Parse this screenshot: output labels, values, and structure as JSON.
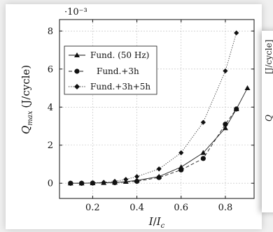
{
  "chart_data": {
    "type": "line",
    "exponent_label": "·10⁻³",
    "xlabel_main": "I",
    "xlabel_sub": "I",
    "xlabel_sub_index": "c",
    "ylabel_main": "Q",
    "ylabel_sub": "max",
    "ylabel_unit": "(J/cycle)",
    "xlim": [
      0.05,
      0.93
    ],
    "ylim": [
      -0.8,
      8.6
    ],
    "xticks": [
      0.2,
      0.4,
      0.6,
      0.8
    ],
    "xtick_labels": [
      "0.2",
      "0.4",
      "0.6",
      "0.8"
    ],
    "yticks": [
      0,
      2,
      4,
      6,
      8
    ],
    "ytick_labels": [
      "0",
      "2",
      "4",
      "6",
      "8"
    ],
    "grid": true,
    "legend_position": "top-left",
    "series": [
      {
        "name": "Fund. (50 Hz)",
        "marker": "triangle",
        "style": "solid",
        "x": [
          0.1,
          0.15,
          0.2,
          0.25,
          0.3,
          0.35,
          0.4,
          0.5,
          0.6,
          0.7,
          0.8,
          0.85,
          0.9
        ],
        "y": [
          0.0,
          0.0,
          0.01,
          0.02,
          0.04,
          0.08,
          0.15,
          0.35,
          0.85,
          1.6,
          2.9,
          3.9,
          5.0
        ]
      },
      {
        "name": "Fund.+3h",
        "marker": "circle",
        "style": "dashed",
        "x": [
          0.1,
          0.15,
          0.2,
          0.3,
          0.4,
          0.5,
          0.6,
          0.7,
          0.8,
          0.85
        ],
        "y": [
          0.0,
          0.0,
          0.01,
          0.03,
          0.1,
          0.3,
          0.7,
          1.3,
          3.1,
          3.9
        ]
      },
      {
        "name": "Fund.+3h+5h",
        "marker": "diamond",
        "style": "dotted",
        "x": [
          0.1,
          0.15,
          0.2,
          0.25,
          0.3,
          0.35,
          0.4,
          0.5,
          0.6,
          0.7,
          0.8,
          0.85
        ],
        "y": [
          0.0,
          0.0,
          0.02,
          0.05,
          0.1,
          0.2,
          0.35,
          0.75,
          1.6,
          3.2,
          5.9,
          7.9
        ]
      }
    ]
  },
  "side_panel": {
    "label_fragment": "Q",
    "unit_fragment": "[J/cycle]"
  }
}
